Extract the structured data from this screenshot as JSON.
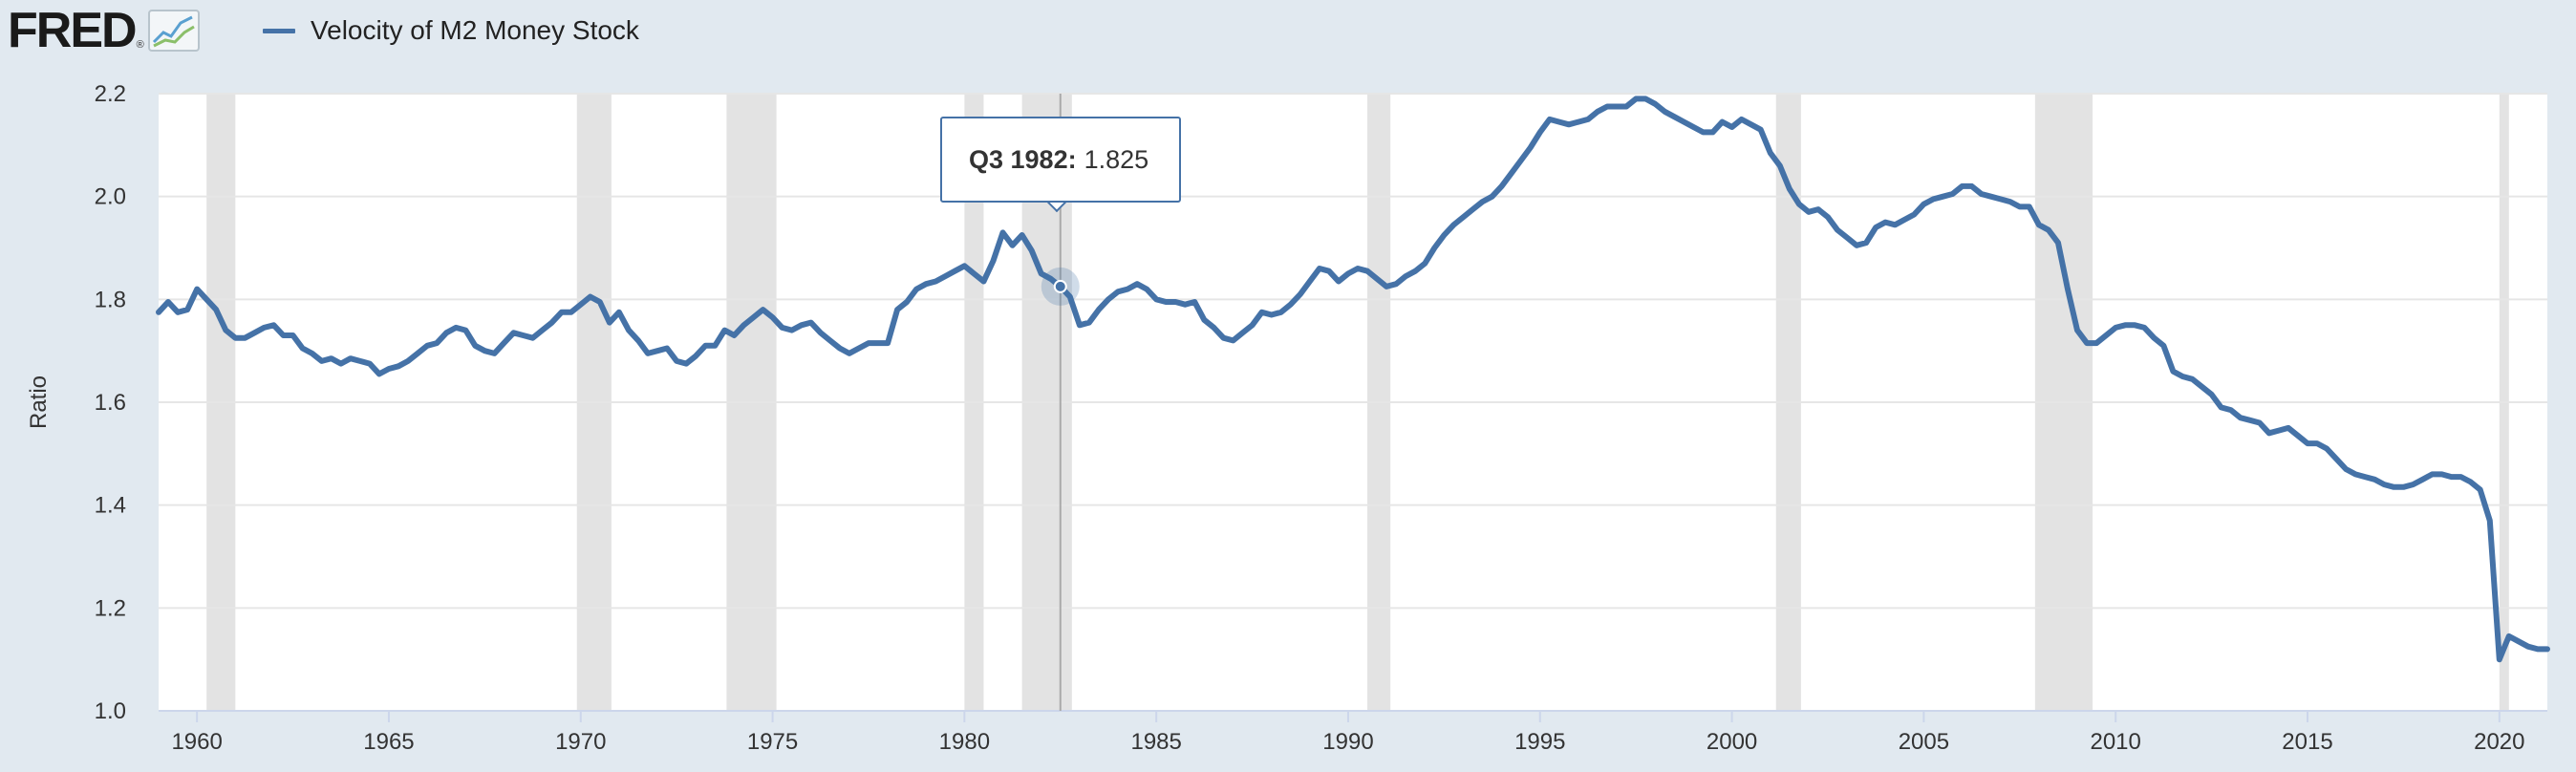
{
  "header": {
    "logo_text": "FRED",
    "logo_reg": "®",
    "legend_label": "Velocity of M2 Money Stock"
  },
  "tooltip": {
    "period": "Q3 1982:",
    "value": "1.825"
  },
  "colors": {
    "series": "#4572a7",
    "recession": "#e3e3e3",
    "background": "#e1e9f0",
    "plot_background": "#ffffff",
    "grid": "#e6e6e6"
  },
  "chart_data": {
    "type": "line",
    "title": "",
    "xlabel": "",
    "ylabel": "Ratio",
    "xlim": [
      1959.0,
      2021.25
    ],
    "ylim": [
      1.0,
      2.2
    ],
    "x_ticks": [
      "1960",
      "1965",
      "1970",
      "1975",
      "1980",
      "1985",
      "1990",
      "1995",
      "2000",
      "2005",
      "2010",
      "2015",
      "2020"
    ],
    "y_ticks": [
      "1.0",
      "1.2",
      "1.4",
      "1.6",
      "1.8",
      "2.0",
      "2.2"
    ],
    "grid": true,
    "legend_position": "top-left",
    "recessions": [
      [
        1960.25,
        1961.0
      ],
      [
        1969.9,
        1970.8
      ],
      [
        1973.8,
        1975.1
      ],
      [
        1980.0,
        1980.5
      ],
      [
        1981.5,
        1982.8
      ],
      [
        1990.5,
        1991.1
      ],
      [
        2001.15,
        2001.8
      ],
      [
        2007.9,
        2009.4
      ],
      [
        2020.0,
        2020.25
      ]
    ],
    "highlight": {
      "x": 1982.5,
      "y": 1.825
    },
    "series": [
      {
        "name": "Velocity of M2 Money Stock",
        "x": [
          1959.0,
          1959.25,
          1959.5,
          1959.75,
          1960.0,
          1960.25,
          1960.5,
          1960.75,
          1961.0,
          1961.25,
          1961.5,
          1961.75,
          1962.0,
          1962.25,
          1962.5,
          1962.75,
          1963.0,
          1963.25,
          1963.5,
          1963.75,
          1964.0,
          1964.25,
          1964.5,
          1964.75,
          1965.0,
          1965.25,
          1965.5,
          1965.75,
          1966.0,
          1966.25,
          1966.5,
          1966.75,
          1967.0,
          1967.25,
          1967.5,
          1967.75,
          1968.0,
          1968.25,
          1968.5,
          1968.75,
          1969.0,
          1969.25,
          1969.5,
          1969.75,
          1970.0,
          1970.25,
          1970.5,
          1970.75,
          1971.0,
          1971.25,
          1971.5,
          1971.75,
          1972.0,
          1972.25,
          1972.5,
          1972.75,
          1973.0,
          1973.25,
          1973.5,
          1973.75,
          1974.0,
          1974.25,
          1974.5,
          1974.75,
          1975.0,
          1975.25,
          1975.5,
          1975.75,
          1976.0,
          1976.25,
          1976.5,
          1976.75,
          1977.0,
          1977.25,
          1977.5,
          1977.75,
          1978.0,
          1978.25,
          1978.5,
          1978.75,
          1979.0,
          1979.25,
          1979.5,
          1979.75,
          1980.0,
          1980.25,
          1980.5,
          1980.75,
          1981.0,
          1981.25,
          1981.5,
          1981.75,
          1982.0,
          1982.25,
          1982.5,
          1982.75,
          1983.0,
          1983.25,
          1983.5,
          1983.75,
          1984.0,
          1984.25,
          1984.5,
          1984.75,
          1985.0,
          1985.25,
          1985.5,
          1985.75,
          1986.0,
          1986.25,
          1986.5,
          1986.75,
          1987.0,
          1987.25,
          1987.5,
          1987.75,
          1988.0,
          1988.25,
          1988.5,
          1988.75,
          1989.0,
          1989.25,
          1989.5,
          1989.75,
          1990.0,
          1990.25,
          1990.5,
          1990.75,
          1991.0,
          1991.25,
          1991.5,
          1991.75,
          1992.0,
          1992.25,
          1992.5,
          1992.75,
          1993.0,
          1993.25,
          1993.5,
          1993.75,
          1994.0,
          1994.25,
          1994.5,
          1994.75,
          1995.0,
          1995.25,
          1995.5,
          1995.75,
          1996.0,
          1996.25,
          1996.5,
          1996.75,
          1997.0,
          1997.25,
          1997.5,
          1997.75,
          1998.0,
          1998.25,
          1998.5,
          1998.75,
          1999.0,
          1999.25,
          1999.5,
          1999.75,
          2000.0,
          2000.25,
          2000.5,
          2000.75,
          2001.0,
          2001.25,
          2001.5,
          2001.75,
          2002.0,
          2002.25,
          2002.5,
          2002.75,
          2003.0,
          2003.25,
          2003.5,
          2003.75,
          2004.0,
          2004.25,
          2004.5,
          2004.75,
          2005.0,
          2005.25,
          2005.5,
          2005.75,
          2006.0,
          2006.25,
          2006.5,
          2006.75,
          2007.0,
          2007.25,
          2007.5,
          2007.75,
          2008.0,
          2008.25,
          2008.5,
          2008.75,
          2009.0,
          2009.25,
          2009.5,
          2009.75,
          2010.0,
          2010.25,
          2010.5,
          2010.75,
          2011.0,
          2011.25,
          2011.5,
          2011.75,
          2012.0,
          2012.25,
          2012.5,
          2012.75,
          2013.0,
          2013.25,
          2013.5,
          2013.75,
          2014.0,
          2014.25,
          2014.5,
          2014.75,
          2015.0,
          2015.25,
          2015.5,
          2015.75,
          2016.0,
          2016.25,
          2016.5,
          2016.75,
          2017.0,
          2017.25,
          2017.5,
          2017.75,
          2018.0,
          2018.25,
          2018.5,
          2018.75,
          2019.0,
          2019.25,
          2019.5,
          2019.75,
          2020.0,
          2020.25,
          2020.5,
          2020.75,
          2021.0,
          2021.25
        ],
        "values": [
          1.775,
          1.795,
          1.775,
          1.78,
          1.82,
          1.8,
          1.78,
          1.74,
          1.725,
          1.725,
          1.735,
          1.745,
          1.75,
          1.73,
          1.73,
          1.705,
          1.695,
          1.68,
          1.685,
          1.675,
          1.685,
          1.68,
          1.675,
          1.655,
          1.665,
          1.67,
          1.68,
          1.695,
          1.71,
          1.715,
          1.735,
          1.745,
          1.74,
          1.71,
          1.7,
          1.695,
          1.715,
          1.735,
          1.73,
          1.725,
          1.74,
          1.755,
          1.775,
          1.775,
          1.79,
          1.805,
          1.795,
          1.755,
          1.775,
          1.74,
          1.72,
          1.695,
          1.7,
          1.705,
          1.68,
          1.675,
          1.69,
          1.71,
          1.71,
          1.74,
          1.73,
          1.75,
          1.765,
          1.78,
          1.765,
          1.745,
          1.74,
          1.75,
          1.755,
          1.735,
          1.72,
          1.705,
          1.695,
          1.705,
          1.715,
          1.715,
          1.715,
          1.78,
          1.795,
          1.82,
          1.83,
          1.835,
          1.845,
          1.855,
          1.865,
          1.85,
          1.835,
          1.875,
          1.93,
          1.905,
          1.925,
          1.895,
          1.85,
          1.84,
          1.825,
          1.805,
          1.75,
          1.755,
          1.78,
          1.8,
          1.815,
          1.82,
          1.83,
          1.82,
          1.8,
          1.795,
          1.795,
          1.79,
          1.795,
          1.76,
          1.745,
          1.725,
          1.72,
          1.735,
          1.75,
          1.775,
          1.77,
          1.775,
          1.79,
          1.81,
          1.835,
          1.86,
          1.855,
          1.835,
          1.85,
          1.86,
          1.855,
          1.84,
          1.825,
          1.83,
          1.845,
          1.855,
          1.87,
          1.9,
          1.925,
          1.945,
          1.96,
          1.975,
          1.99,
          2.0,
          2.02,
          2.045,
          2.07,
          2.095,
          2.125,
          2.15,
          2.145,
          2.14,
          2.145,
          2.15,
          2.165,
          2.175,
          2.175,
          2.175,
          2.19,
          2.19,
          2.18,
          2.165,
          2.155,
          2.145,
          2.135,
          2.125,
          2.125,
          2.145,
          2.135,
          2.15,
          2.14,
          2.13,
          2.085,
          2.06,
          2.015,
          1.985,
          1.97,
          1.975,
          1.96,
          1.935,
          1.92,
          1.905,
          1.91,
          1.94,
          1.95,
          1.945,
          1.955,
          1.965,
          1.985,
          1.995,
          2.0,
          2.005,
          2.02,
          2.02,
          2.005,
          2.0,
          1.995,
          1.99,
          1.98,
          1.98,
          1.945,
          1.935,
          1.91,
          1.82,
          1.74,
          1.715,
          1.715,
          1.73,
          1.745,
          1.75,
          1.75,
          1.745,
          1.725,
          1.71,
          1.66,
          1.65,
          1.645,
          1.63,
          1.615,
          1.59,
          1.585,
          1.57,
          1.565,
          1.56,
          1.54,
          1.545,
          1.55,
          1.535,
          1.52,
          1.52,
          1.51,
          1.49,
          1.47,
          1.46,
          1.455,
          1.45,
          1.44,
          1.435,
          1.435,
          1.44,
          1.45,
          1.46,
          1.46,
          1.455,
          1.455,
          1.445,
          1.43,
          1.37,
          1.1,
          1.145,
          1.135,
          1.125,
          1.12,
          1.12
        ]
      }
    ]
  }
}
